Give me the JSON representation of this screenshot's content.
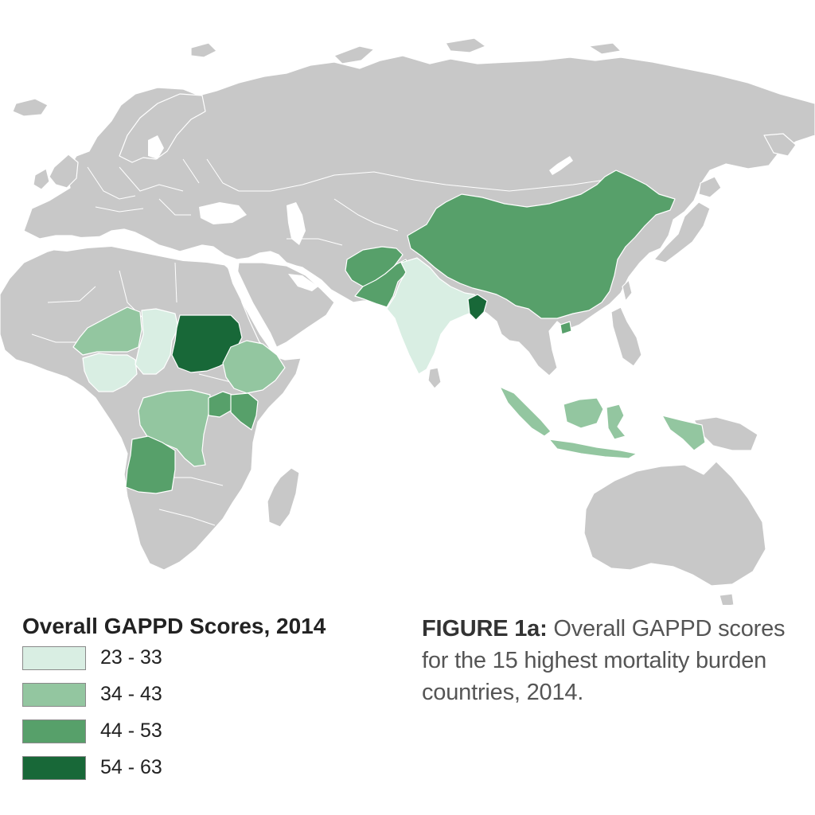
{
  "legend": {
    "title": "Overall GAPPD Scores, 2014",
    "items": [
      {
        "label": "23 - 33",
        "color": "#d9eee3"
      },
      {
        "label": "34 - 43",
        "color": "#93c6a0"
      },
      {
        "label": "44 - 53",
        "color": "#57a06a"
      },
      {
        "label": "54 - 63",
        "color": "#186838"
      }
    ]
  },
  "caption": {
    "label": "FIGURE 1a:",
    "line1": " Overall GAPPD scores",
    "line2": "for the 15 highest mortality burden",
    "line3": "countries, 2014."
  },
  "map": {
    "background_land_color": "#c8c8c8",
    "highlighted_countries": [
      {
        "name": "Nigeria",
        "range": "23 - 33"
      },
      {
        "name": "Chad",
        "range": "23 - 33"
      },
      {
        "name": "India",
        "range": "23 - 33"
      },
      {
        "name": "Niger",
        "range": "34 - 43"
      },
      {
        "name": "Ethiopia",
        "range": "34 - 43"
      },
      {
        "name": "DR Congo",
        "range": "34 - 43"
      },
      {
        "name": "Indonesia",
        "range": "34 - 43"
      },
      {
        "name": "Uganda",
        "range": "44 - 53"
      },
      {
        "name": "Kenya",
        "range": "44 - 53"
      },
      {
        "name": "Angola",
        "range": "44 - 53"
      },
      {
        "name": "Afghanistan",
        "range": "44 - 53"
      },
      {
        "name": "Pakistan",
        "range": "44 - 53"
      },
      {
        "name": "China",
        "range": "44 - 53"
      },
      {
        "name": "Sudan",
        "range": "54 - 63"
      },
      {
        "name": "Bangladesh",
        "range": "54 - 63"
      }
    ]
  }
}
